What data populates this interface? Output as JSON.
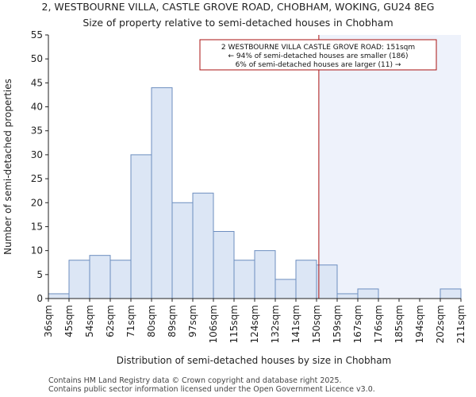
{
  "chart_data": {
    "type": "bar",
    "title": "2, WESTBOURNE VILLA, CASTLE GROVE ROAD, CHOBHAM, WOKING, GU24 8EG",
    "subtitle": "Size of property relative to semi-detached houses in Chobham",
    "xlabel": "Distribution of semi-detached houses by size in Chobham",
    "ylabel": "Number of semi-detached properties",
    "ylim": [
      0,
      55
    ],
    "yticks": [
      0,
      5,
      10,
      15,
      20,
      25,
      30,
      35,
      40,
      45,
      50,
      55
    ],
    "edges": [
      "36sqm",
      "45sqm",
      "54sqm",
      "62sqm",
      "71sqm",
      "80sqm",
      "89sqm",
      "97sqm",
      "106sqm",
      "115sqm",
      "124sqm",
      "132sqm",
      "141sqm",
      "150sqm",
      "159sqm",
      "167sqm",
      "176sqm",
      "185sqm",
      "194sqm",
      "202sqm",
      "211sqm"
    ],
    "values": [
      1,
      8,
      9,
      8,
      30,
      44,
      20,
      22,
      14,
      8,
      10,
      4,
      8,
      7,
      1,
      2,
      0,
      0,
      0,
      2
    ],
    "grid": false,
    "colors": {
      "bar_fill": "#dce6f5",
      "bar_edge": "#6c8ebf",
      "marker": "#aa1111",
      "highlight_fill": "#eef2fb",
      "axis": "#222222"
    },
    "marker": {
      "value_sqm": 151,
      "label": "2, WESTBOURNE VILLA, CASTLE GROVE ROAD: 151sqm"
    },
    "annotation": {
      "line1": "2 WESTBOURNE VILLA CASTLE GROVE ROAD: 151sqm",
      "line2": "← 94% of semi-detached houses are smaller (186)",
      "line3": "6% of semi-detached houses are larger (11) →"
    }
  },
  "footer": {
    "line1": "Contains HM Land Registry data © Crown copyright and database right 2025.",
    "line2": "Contains public sector information licensed under the Open Government Licence v3.0."
  }
}
